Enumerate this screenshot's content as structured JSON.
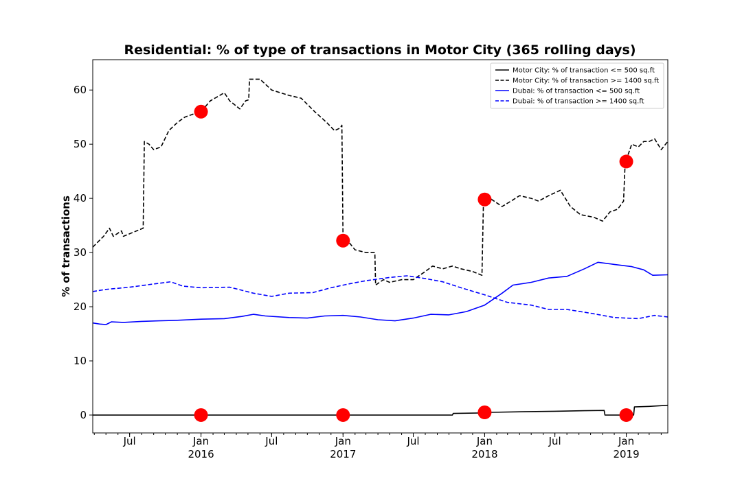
{
  "chart_data": {
    "type": "line",
    "title": "Residential: % of type of transactions in Motor City (365 rolling days)",
    "xlabel": "",
    "ylabel": "% of transactions",
    "xlim": [
      "2015-03-28",
      "2019-04-18"
    ],
    "ylim": [
      -3.3,
      65.6
    ],
    "yticks": [
      0,
      10,
      20,
      30,
      40,
      50,
      60
    ],
    "xticks": [
      {
        "date": "2015-07-01",
        "label": "Jul"
      },
      {
        "date": "2016-01-01",
        "label": "Jan",
        "sublabel": "2016"
      },
      {
        "date": "2016-07-01",
        "label": "Jul"
      },
      {
        "date": "2017-01-01",
        "label": "Jan",
        "sublabel": "2017"
      },
      {
        "date": "2017-07-01",
        "label": "Jul"
      },
      {
        "date": "2018-01-01",
        "label": "Jan",
        "sublabel": "2018"
      },
      {
        "date": "2018-07-01",
        "label": "Jul"
      },
      {
        "date": "2019-01-01",
        "label": "Jan",
        "sublabel": "2019"
      }
    ],
    "legend_position": "top-right",
    "series": [
      {
        "name": "Motor City: % of transaction <= 500 sq.ft",
        "color": "#000000",
        "style": "solid",
        "points": [
          [
            "2015-03-28",
            0
          ],
          [
            "2017-10-10",
            0
          ],
          [
            "2017-10-12",
            0.3
          ],
          [
            "2017-12-31",
            0.4
          ],
          [
            "2018-01-15",
            0.5
          ],
          [
            "2018-04-01",
            0.6
          ],
          [
            "2018-07-01",
            0.7
          ],
          [
            "2018-09-15",
            0.8
          ],
          [
            "2018-11-05",
            0.85
          ],
          [
            "2018-11-07",
            0
          ],
          [
            "2019-01-20",
            0
          ],
          [
            "2019-01-22",
            1.5
          ],
          [
            "2019-03-01",
            1.6
          ],
          [
            "2019-04-18",
            1.8
          ]
        ]
      },
      {
        "name": "Motor City: % of transaction >= 1400 sq.ft",
        "color": "#000000",
        "style": "dashed",
        "points": [
          [
            "2015-03-28",
            31
          ],
          [
            "2015-04-25",
            33
          ],
          [
            "2015-05-10",
            34.5
          ],
          [
            "2015-05-20",
            33
          ],
          [
            "2015-06-10",
            34
          ],
          [
            "2015-06-15",
            33
          ],
          [
            "2015-08-05",
            34.5
          ],
          [
            "2015-08-08",
            50.5
          ],
          [
            "2015-08-20",
            50
          ],
          [
            "2015-09-01",
            49
          ],
          [
            "2015-09-20",
            49.5
          ],
          [
            "2015-10-10",
            52.5
          ],
          [
            "2015-11-01",
            54
          ],
          [
            "2015-11-20",
            55
          ],
          [
            "2015-12-10",
            55.5
          ],
          [
            "2016-01-01",
            56
          ],
          [
            "2016-01-25",
            58
          ],
          [
            "2016-03-01",
            59.5
          ],
          [
            "2016-03-15",
            58
          ],
          [
            "2016-04-10",
            56.5
          ],
          [
            "2016-04-25",
            58
          ],
          [
            "2016-05-03",
            58.2
          ],
          [
            "2016-05-05",
            62
          ],
          [
            "2016-06-01",
            62
          ],
          [
            "2016-07-01",
            60
          ],
          [
            "2016-08-15",
            59
          ],
          [
            "2016-09-15",
            58.5
          ],
          [
            "2016-10-20",
            56
          ],
          [
            "2016-11-20",
            54
          ],
          [
            "2016-12-10",
            52.5
          ],
          [
            "2016-12-25",
            53
          ],
          [
            "2016-12-29",
            53.5
          ],
          [
            "2017-01-01",
            32.5
          ],
          [
            "2017-01-15",
            32
          ],
          [
            "2017-02-01",
            30.5
          ],
          [
            "2017-03-01",
            30
          ],
          [
            "2017-03-24",
            30
          ],
          [
            "2017-03-26",
            24
          ],
          [
            "2017-04-15",
            25
          ],
          [
            "2017-05-01",
            24.5
          ],
          [
            "2017-06-01",
            25
          ],
          [
            "2017-07-01",
            25
          ],
          [
            "2017-08-01",
            26.5
          ],
          [
            "2017-08-20",
            27.5
          ],
          [
            "2017-09-15",
            27
          ],
          [
            "2017-10-10",
            27.5
          ],
          [
            "2017-11-01",
            27
          ],
          [
            "2017-12-01",
            26.5
          ],
          [
            "2017-12-25",
            25.8
          ],
          [
            "2017-12-29",
            39.5
          ],
          [
            "2018-01-15",
            40
          ],
          [
            "2018-02-15",
            38.5
          ],
          [
            "2018-03-10",
            39.5
          ],
          [
            "2018-04-01",
            40.5
          ],
          [
            "2018-05-01",
            40
          ],
          [
            "2018-05-20",
            39.5
          ],
          [
            "2018-06-15",
            40.5
          ],
          [
            "2018-07-15",
            41.5
          ],
          [
            "2018-08-10",
            38.5
          ],
          [
            "2018-09-05",
            37
          ],
          [
            "2018-10-10",
            36.5
          ],
          [
            "2018-11-01",
            35.8
          ],
          [
            "2018-11-20",
            37.5
          ],
          [
            "2018-12-10",
            38
          ],
          [
            "2018-12-25",
            39.5
          ],
          [
            "2018-12-29",
            46.5
          ],
          [
            "2019-01-15",
            50
          ],
          [
            "2019-02-01",
            49.5
          ],
          [
            "2019-02-15",
            50.5
          ],
          [
            "2019-03-01",
            50.5
          ],
          [
            "2019-03-15",
            51
          ],
          [
            "2019-04-01",
            49
          ],
          [
            "2019-04-18",
            50.5
          ]
        ]
      },
      {
        "name": "Dubai: % of transaction <= 500 sq.ft",
        "color": "#0000ff",
        "style": "solid",
        "points": [
          [
            "2015-03-28",
            17
          ],
          [
            "2015-04-15",
            16.8
          ],
          [
            "2015-05-01",
            16.7
          ],
          [
            "2015-05-15",
            17.2
          ],
          [
            "2015-06-15",
            17.1
          ],
          [
            "2015-08-01",
            17.3
          ],
          [
            "2015-09-15",
            17.4
          ],
          [
            "2015-11-01",
            17.5
          ],
          [
            "2016-01-01",
            17.7
          ],
          [
            "2016-03-01",
            17.8
          ],
          [
            "2016-04-15",
            18.2
          ],
          [
            "2016-05-15",
            18.6
          ],
          [
            "2016-06-15",
            18.3
          ],
          [
            "2016-08-15",
            18
          ],
          [
            "2016-10-01",
            17.9
          ],
          [
            "2016-11-15",
            18.3
          ],
          [
            "2017-01-01",
            18.4
          ],
          [
            "2017-02-15",
            18.1
          ],
          [
            "2017-04-01",
            17.6
          ],
          [
            "2017-05-15",
            17.4
          ],
          [
            "2017-07-01",
            17.9
          ],
          [
            "2017-08-15",
            18.6
          ],
          [
            "2017-10-01",
            18.5
          ],
          [
            "2017-11-15",
            19.1
          ],
          [
            "2018-01-01",
            20.3
          ],
          [
            "2018-02-15",
            22.5
          ],
          [
            "2018-03-15",
            24
          ],
          [
            "2018-05-01",
            24.5
          ],
          [
            "2018-06-15",
            25.3
          ],
          [
            "2018-08-01",
            25.6
          ],
          [
            "2018-09-15",
            27
          ],
          [
            "2018-10-20",
            28.2
          ],
          [
            "2018-12-01",
            27.8
          ],
          [
            "2019-01-15",
            27.4
          ],
          [
            "2019-02-15",
            26.8
          ],
          [
            "2019-03-10",
            25.8
          ],
          [
            "2019-04-18",
            25.9
          ]
        ]
      },
      {
        "name": "Dubai: % of transaction >= 1400 sq.ft",
        "color": "#0000ff",
        "style": "dashed",
        "points": [
          [
            "2015-03-28",
            22.8
          ],
          [
            "2015-05-01",
            23.2
          ],
          [
            "2015-07-01",
            23.6
          ],
          [
            "2015-09-01",
            24.2
          ],
          [
            "2015-10-15",
            24.6
          ],
          [
            "2015-11-15",
            23.8
          ],
          [
            "2016-01-01",
            23.5
          ],
          [
            "2016-03-15",
            23.6
          ],
          [
            "2016-05-15",
            22.5
          ],
          [
            "2016-07-01",
            21.9
          ],
          [
            "2016-08-15",
            22.5
          ],
          [
            "2016-10-15",
            22.6
          ],
          [
            "2016-12-01",
            23.5
          ],
          [
            "2017-01-15",
            24.2
          ],
          [
            "2017-03-01",
            24.8
          ],
          [
            "2017-05-01",
            25.4
          ],
          [
            "2017-06-15",
            25.7
          ],
          [
            "2017-08-01",
            25.2
          ],
          [
            "2017-09-15",
            24.6
          ],
          [
            "2017-11-01",
            23.5
          ],
          [
            "2018-01-01",
            22.2
          ],
          [
            "2018-03-01",
            20.8
          ],
          [
            "2018-05-01",
            20.3
          ],
          [
            "2018-06-15",
            19.5
          ],
          [
            "2018-08-01",
            19.5
          ],
          [
            "2018-10-01",
            18.8
          ],
          [
            "2018-12-01",
            18
          ],
          [
            "2019-02-01",
            17.8
          ],
          [
            "2019-03-15",
            18.4
          ],
          [
            "2019-04-18",
            18.1
          ]
        ]
      }
    ],
    "markers": {
      "color": "#ff0000",
      "points": [
        [
          "2016-01-01",
          56
        ],
        [
          "2017-01-01",
          32.2
        ],
        [
          "2018-01-01",
          39.8
        ],
        [
          "2019-01-01",
          46.8
        ],
        [
          "2016-01-01",
          0
        ],
        [
          "2017-01-01",
          0
        ],
        [
          "2018-01-01",
          0.5
        ],
        [
          "2019-01-01",
          0
        ]
      ]
    }
  }
}
